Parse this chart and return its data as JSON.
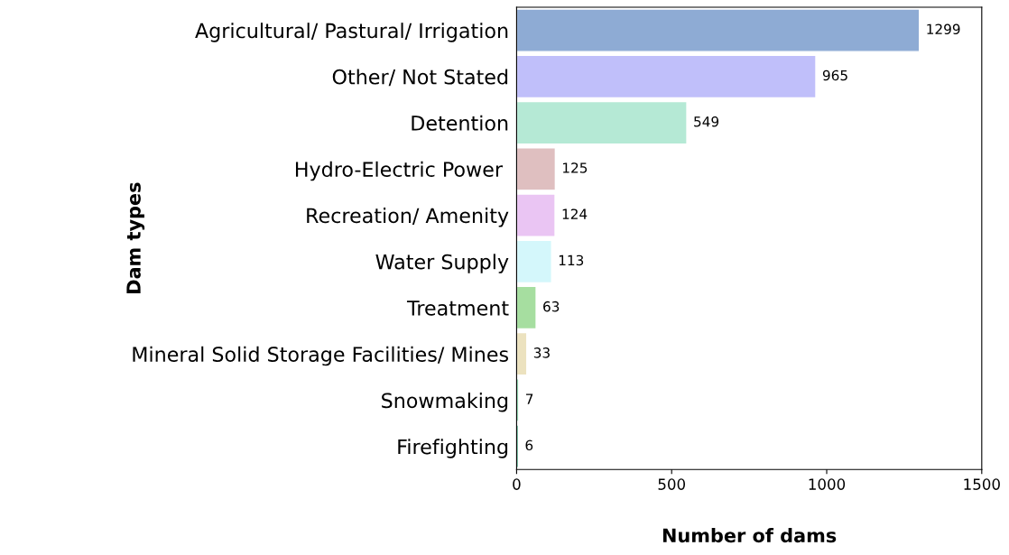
{
  "chart_data": {
    "type": "bar",
    "orientation": "horizontal",
    "xlabel": "Number of dams",
    "ylabel": "Dam types",
    "categories": [
      "Agricultural/ Pastural/ Irrigation",
      "Other/ Not Stated",
      "Detention",
      "Hydro-Electric Power ",
      "Recreation/ Amenity",
      "Water Supply",
      "Treatment",
      "Mineral Solid Storage Facilities/ Mines",
      "Snowmaking",
      "Firefighting"
    ],
    "values": [
      1299,
      965,
      549,
      125,
      124,
      113,
      63,
      33,
      7,
      6
    ],
    "colors": [
      "#8eabd4",
      "#c0bffa",
      "#b5e9d5",
      "#dfbfc0",
      "#eac5f3",
      "#d4f7fb",
      "#a6dea0",
      "#ece2bf",
      "#8fd9b0",
      "#4bb08a"
    ],
    "xlim": [
      0,
      1500
    ],
    "xticks": [
      0,
      500,
      1000,
      1500
    ],
    "data_labels": true,
    "grid": false,
    "legend": false
  }
}
